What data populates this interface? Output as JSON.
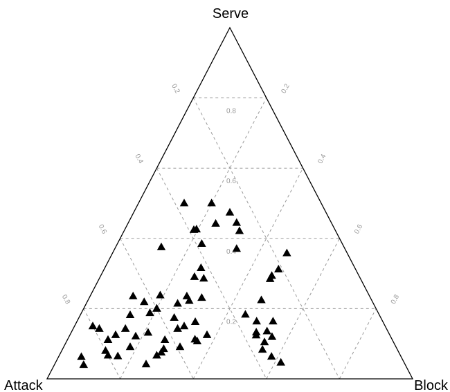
{
  "chart_data": {
    "type": "scatter",
    "subtype": "ternary",
    "title": "",
    "vertex_labels": {
      "top": "Serve",
      "left": "Attack",
      "right": "Block"
    },
    "grid": true,
    "grid_style": "dashed gray",
    "marker": "filled-triangle",
    "marker_color": "#000000",
    "grid_values": [
      0.2,
      0.4,
      0.6,
      0.8
    ],
    "tick_labels": {
      "attack": [
        "0.2",
        "0.4",
        "0.6",
        "0.8"
      ],
      "serve": [
        "0.2",
        "0.4",
        "0.6",
        "0.8"
      ],
      "block": [
        "0.2",
        "0.4",
        "0.6",
        "0.8"
      ]
    },
    "components": [
      "attack",
      "serve",
      "block"
    ],
    "points": [
      [
        0.56,
        0.63,
        0.29
      ],
      [
        0.51,
        0.56,
        0.25
      ],
      [
        0.41,
        0.57,
        0.31
      ],
      [
        0.18,
        0.39,
        0.52
      ],
      [
        0.26,
        0.32,
        0.51
      ],
      [
        0.23,
        0.34,
        0.52
      ],
      [
        0.27,
        0.31,
        0.51
      ],
      [
        0.35,
        0.26,
        0.55
      ],
      [
        0.56,
        0.28,
        0.69
      ],
      [
        0.4,
        0.19,
        0.57
      ],
      [
        0.56,
        0.19,
        0.78
      ],
      [
        0.54,
        0.16,
        0.83
      ],
      [
        0.39,
        0.16,
        0.63
      ],
      [
        0.38,
        0.14,
        0.65
      ],
      [
        0.33,
        0.18,
        0.59
      ],
      [
        0.31,
        0.07,
        0.46
      ],
      [
        0.28,
        0.05,
        0.46
      ],
      [
        0.29,
        0.04,
        0.53
      ],
      [
        0.48,
        0.1,
        0.31
      ],
      [
        0.3,
        0.11,
        0.42
      ],
      [
        0.45,
        0.09,
        0.3
      ],
      [
        0.09,
        0.15,
        0.06
      ],
      [
        0.08,
        0.1,
        0.09
      ],
      [
        0.07,
        0.12,
        0.08
      ],
      [
        0.05,
        0.09,
        0.05
      ],
      [
        0.05,
        0.08,
        0.06
      ],
      [
        0.15,
        0.06,
        0.07
      ],
      [
        0.18,
        0.06,
        0.06
      ],
      [
        0.08,
        0.06,
        0.05
      ],
      [
        0.05,
        0.05,
        0.03
      ],
      [
        0.12,
        0.05,
        0.04
      ],
      [
        0.06,
        0.08,
        0.02
      ],
      [
        0.14,
        0.09,
        0.08
      ],
      [
        0.17,
        0.08,
        0.09
      ],
      [
        0.2,
        0.07,
        0.05
      ],
      [
        0.22,
        0.06,
        0.12
      ],
      [
        0.19,
        0.06,
        0.12
      ],
      [
        0.25,
        0.05,
        0.08
      ],
      [
        0.23,
        0.04,
        0.06
      ],
      [
        0.21,
        0.03,
        0.03
      ],
      [
        0.24,
        0.02,
        0.05
      ],
      [
        0.1,
        0.03,
        0.03
      ],
      [
        0.08,
        0.02,
        0.04
      ],
      [
        0.11,
        0.02,
        0.01
      ],
      [
        0.13,
        0.02,
        0.07
      ],
      [
        0.12,
        0.01,
        0.02
      ],
      [
        0.14,
        0.01,
        0.01
      ],
      [
        0.16,
        0.02,
        0.04
      ],
      [
        0.16,
        0.03,
        0.01
      ],
      [
        0.18,
        0.03,
        0.03
      ],
      [
        0.17,
        0.01,
        0.06
      ],
      [
        0.07,
        0.01,
        0.01
      ],
      [
        0.06,
        0.02,
        0.02
      ],
      [
        0.04,
        0.03,
        0.01
      ],
      [
        0.03,
        0.02,
        0.02
      ],
      [
        0.04,
        0.01,
        0.03
      ],
      [
        0.05,
        0.01,
        0.01
      ],
      [
        0.06,
        0.03,
        0.04
      ],
      [
        0.09,
        0.04,
        0.05
      ],
      [
        0.1,
        0.01,
        0.04
      ],
      [
        0.11,
        0.04,
        0.02
      ],
      [
        0.13,
        0.04,
        0.06
      ],
      [
        0.15,
        0.04,
        0.03
      ],
      [
        0.2,
        0.02,
        0.03
      ],
      [
        0.22,
        0.01,
        0.02
      ],
      [
        0.26,
        0.03,
        0.11
      ],
      [
        0.28,
        0.05,
        0.12
      ],
      [
        0.3,
        0.04,
        0.13
      ]
    ]
  }
}
